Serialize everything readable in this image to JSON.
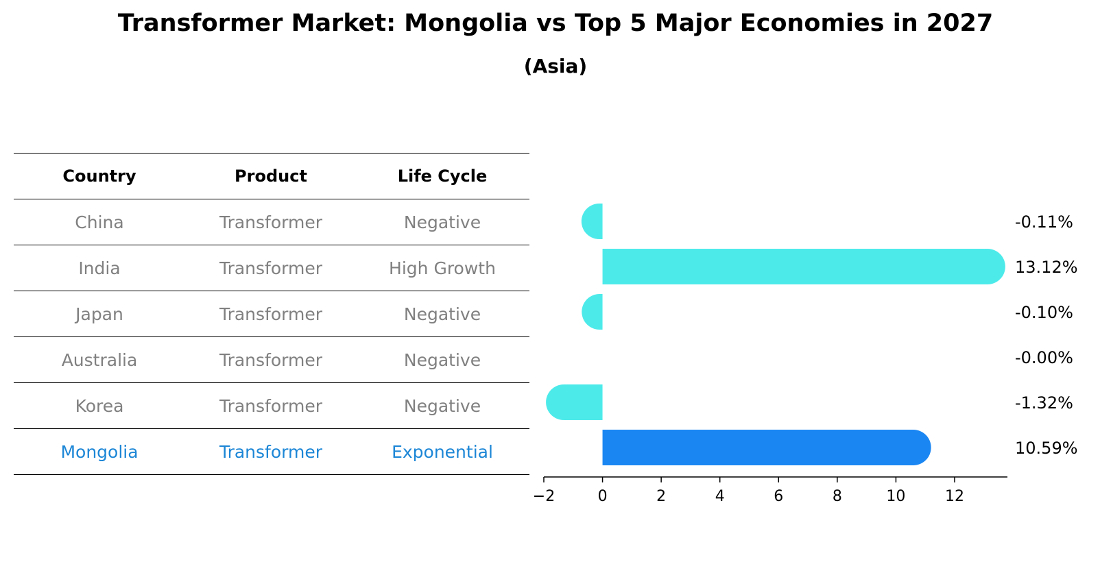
{
  "title": "Transformer Market: Mongolia vs Top 5 Major Economies in 2027",
  "subtitle": "(Asia)",
  "table": {
    "headers": [
      "Country",
      "Product",
      "Life Cycle"
    ],
    "rows": [
      {
        "country": "China",
        "product": "Transformer",
        "life_cycle": "Negative"
      },
      {
        "country": "India",
        "product": "Transformer",
        "life_cycle": "High Growth"
      },
      {
        "country": "Japan",
        "product": "Transformer",
        "life_cycle": "Negative"
      },
      {
        "country": "Australia",
        "product": "Transformer",
        "life_cycle": "Negative"
      },
      {
        "country": "Korea",
        "product": "Transformer",
        "life_cycle": "Negative"
      },
      {
        "country": "Mongolia",
        "product": "Transformer",
        "life_cycle": "Exponential"
      }
    ]
  },
  "chart_data": {
    "type": "bar",
    "orientation": "horizontal",
    "categories": [
      "China",
      "India",
      "Japan",
      "Australia",
      "Korea",
      "Mongolia"
    ],
    "values": [
      -0.11,
      13.12,
      -0.1,
      -0.0,
      -1.32,
      10.59
    ],
    "value_labels": [
      "-0.11%",
      "13.12%",
      "-0.10%",
      "-0.00%",
      "-1.32%",
      "10.59%"
    ],
    "xlim": [
      -2,
      13.8
    ],
    "xticks": [
      -2,
      0,
      2,
      4,
      6,
      8,
      10,
      12
    ],
    "xtick_labels": [
      "−2",
      "0",
      "2",
      "4",
      "6",
      "8",
      "10",
      "12"
    ],
    "colors": {
      "default": "#4deaea",
      "highlight": "#1a86f2",
      "highlight_index": 5
    },
    "grid": false
  }
}
